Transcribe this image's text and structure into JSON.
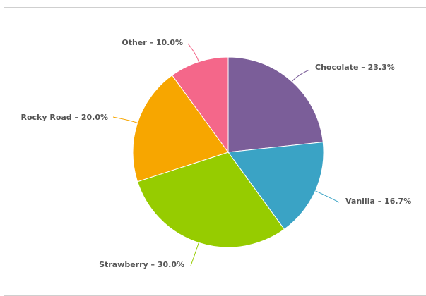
{
  "chart_data": {
    "type": "pie",
    "slices": [
      {
        "name": "Chocolate",
        "value": 23.3,
        "label": "Chocolate – 23.3%",
        "color": "#7b5e99"
      },
      {
        "name": "Vanilla",
        "value": 16.7,
        "label": "Vanilla – 16.7%",
        "color": "#3aa3c5"
      },
      {
        "name": "Strawberry",
        "value": 30.0,
        "label": "Strawberry – 30.0%",
        "color": "#96cc00"
      },
      {
        "name": "Rocky Road",
        "value": 20.0,
        "label": "Rocky Road – 20.0%",
        "color": "#f7a600"
      },
      {
        "name": "Other",
        "value": 10.0,
        "label": "Other – 10.0%",
        "color": "#f4678a"
      }
    ],
    "label_color": "#555555"
  }
}
